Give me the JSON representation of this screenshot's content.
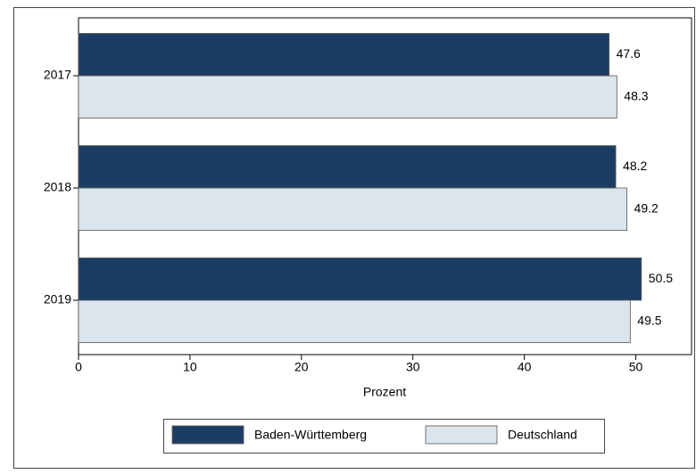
{
  "chart_data": {
    "type": "barh",
    "categories": [
      "2017",
      "2018",
      "2019"
    ],
    "series": [
      {
        "name": "Baden-Württemberg",
        "color": "#1c3d63",
        "values": [
          47.6,
          48.2,
          50.5
        ]
      },
      {
        "name": "Deutschland",
        "color": "#dbe5eb",
        "values": [
          48.3,
          49.2,
          49.5
        ]
      }
    ],
    "xlabel": "Prozent",
    "xlim": [
      0,
      55
    ],
    "xticks": [
      0,
      10,
      20,
      30,
      40,
      50
    ]
  }
}
